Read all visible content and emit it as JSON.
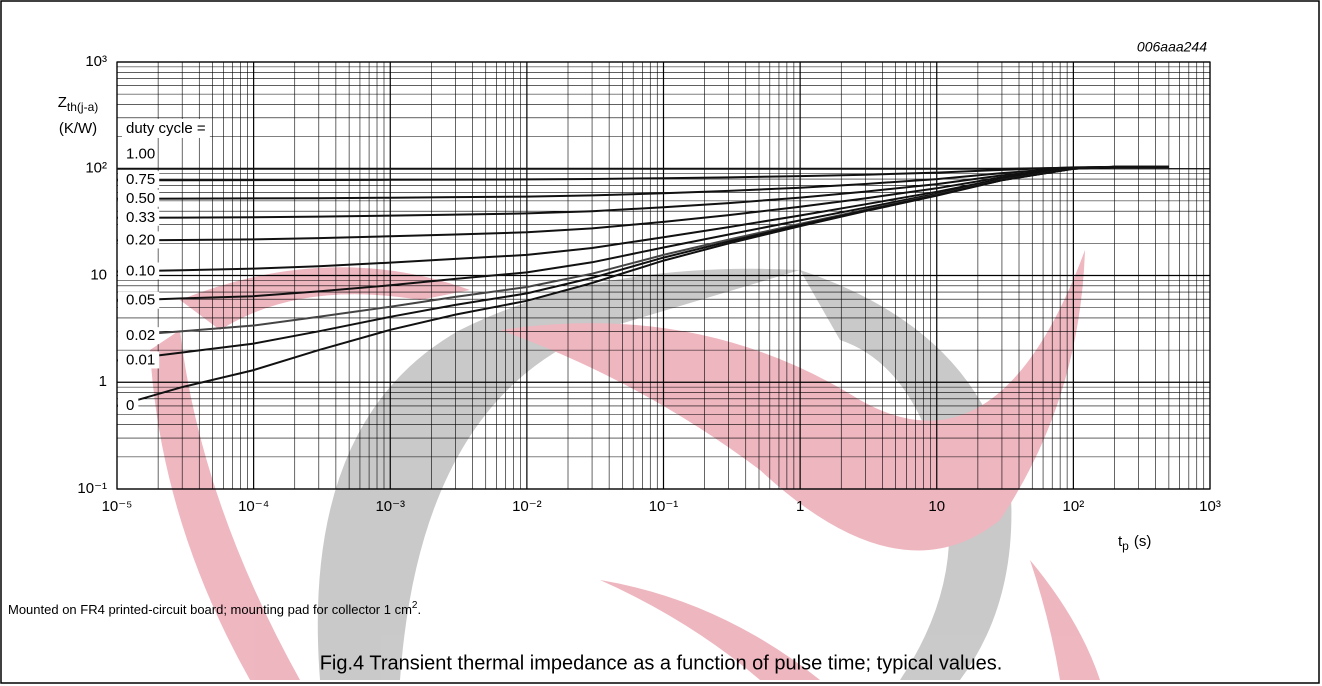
{
  "chart_data": {
    "type": "line",
    "code": "006aaa244",
    "y_label": "Z",
    "y_label_sub": "th(j-a)",
    "y_unit": "(K/W)",
    "x_label": "t",
    "x_label_sub": "p",
    "x_unit": "(s)",
    "legend_title": "duty cycle =",
    "log_x": true,
    "log_y": true,
    "grid": true,
    "minor_grid": true,
    "xlim": [
      1e-05,
      1000
    ],
    "ylim": [
      0.1,
      1000
    ],
    "xticks": [
      {
        "value": 1e-05,
        "label": "10⁻⁵"
      },
      {
        "value": 0.0001,
        "label": "10⁻⁴"
      },
      {
        "value": 0.001,
        "label": "10⁻³"
      },
      {
        "value": 0.01,
        "label": "10⁻²"
      },
      {
        "value": 0.1,
        "label": "10⁻¹"
      },
      1,
      10,
      {
        "value": 100,
        "label": "10²"
      },
      {
        "value": 1000,
        "label": "10³"
      }
    ],
    "yticks": [
      {
        "value": 0.1,
        "label": "10⁻¹"
      },
      1,
      10,
      {
        "value": 100,
        "label": "10²"
      },
      {
        "value": 1000,
        "label": "10³"
      }
    ],
    "x": [
      1e-05,
      3e-05,
      0.0001,
      0.0003,
      0.001,
      0.003,
      0.01,
      0.03,
      0.1,
      0.3,
      1,
      3,
      10,
      30,
      100,
      200,
      500
    ],
    "series": [
      {
        "name": "1.00",
        "color": "#111111",
        "values": [
          100,
          100,
          100,
          100,
          100,
          100,
          100,
          100,
          100,
          100,
          100,
          100,
          100,
          100,
          102,
          104,
          104
        ]
      },
      {
        "name": "0.75",
        "color": "#111111",
        "values": [
          78.2,
          78.2,
          78.3,
          78.5,
          78.8,
          79.1,
          79.5,
          80.1,
          81.5,
          83,
          85.3,
          88,
          92,
          97.5,
          103,
          104,
          104
        ]
      },
      {
        "name": "0.50",
        "color": "#111111",
        "values": [
          52.3,
          52.5,
          52.7,
          53,
          53.6,
          54.2,
          54.9,
          56.3,
          58.9,
          62,
          66.5,
          72,
          80,
          91,
          102,
          104,
          104
        ]
      },
      {
        "name": "0.33",
        "color": "#111111",
        "values": [
          34.7,
          34.9,
          35.2,
          35.6,
          36.4,
          37.2,
          38.2,
          40,
          43.5,
          47.7,
          53.7,
          61.1,
          71.8,
          86.6,
          101,
          104,
          104
        ]
      },
      {
        "name": "0.20",
        "color": "#111111",
        "values": [
          21.3,
          21.5,
          21.8,
          22.4,
          23.3,
          24.2,
          25.4,
          27.6,
          31.8,
          36.8,
          44,
          52.8,
          65.6,
          83.2,
          100.8,
          104,
          104
        ]
      },
      {
        "name": "0.10",
        "color": "#111111",
        "values": [
          10.9,
          11.2,
          11.6,
          12.2,
          13.2,
          14.3,
          15.6,
          18.1,
          22.8,
          28.4,
          36.5,
          46.4,
          60.8,
          80.6,
          100.4,
          104,
          104
        ]
      },
      {
        "name": "0.05",
        "color": "#111111",
        "values": [
          5.8,
          6.1,
          6.4,
          7.1,
          8.1,
          9.3,
          10.7,
          13.3,
          18.3,
          24.2,
          32.8,
          43.2,
          58.4,
          79.3,
          100.2,
          104,
          104
        ]
      },
      {
        "name": "0.02",
        "color": "#444444",
        "values": [
          2.7,
          3.0,
          3.4,
          4.1,
          5.1,
          6.3,
          7.8,
          10.4,
          15.6,
          21.7,
          30.5,
          41.3,
          57,
          78.5,
          100,
          104,
          104
        ]
      },
      {
        "name": "0.01",
        "color": "#111111",
        "values": [
          1.6,
          1.9,
          2.3,
          3.0,
          4.1,
          5.3,
          6.8,
          9.5,
          14.7,
          20.8,
          29.7,
          40.6,
          56.5,
          78.3,
          100,
          104,
          104
        ]
      },
      {
        "name": "0",
        "color": "#111111",
        "values": [
          0.6,
          0.9,
          1.3,
          2.0,
          3.1,
          4.3,
          5.8,
          8.5,
          13.8,
          20,
          29,
          40,
          56,
          78,
          100,
          104,
          104
        ]
      }
    ],
    "note": "Mounted on FR4 printed-circuit board; mounting pad for collector 1 cm",
    "note_sup": "2",
    "note_end": ".",
    "caption": "Fig.4  Transient thermal impedance as a function of pulse time; typical values."
  }
}
